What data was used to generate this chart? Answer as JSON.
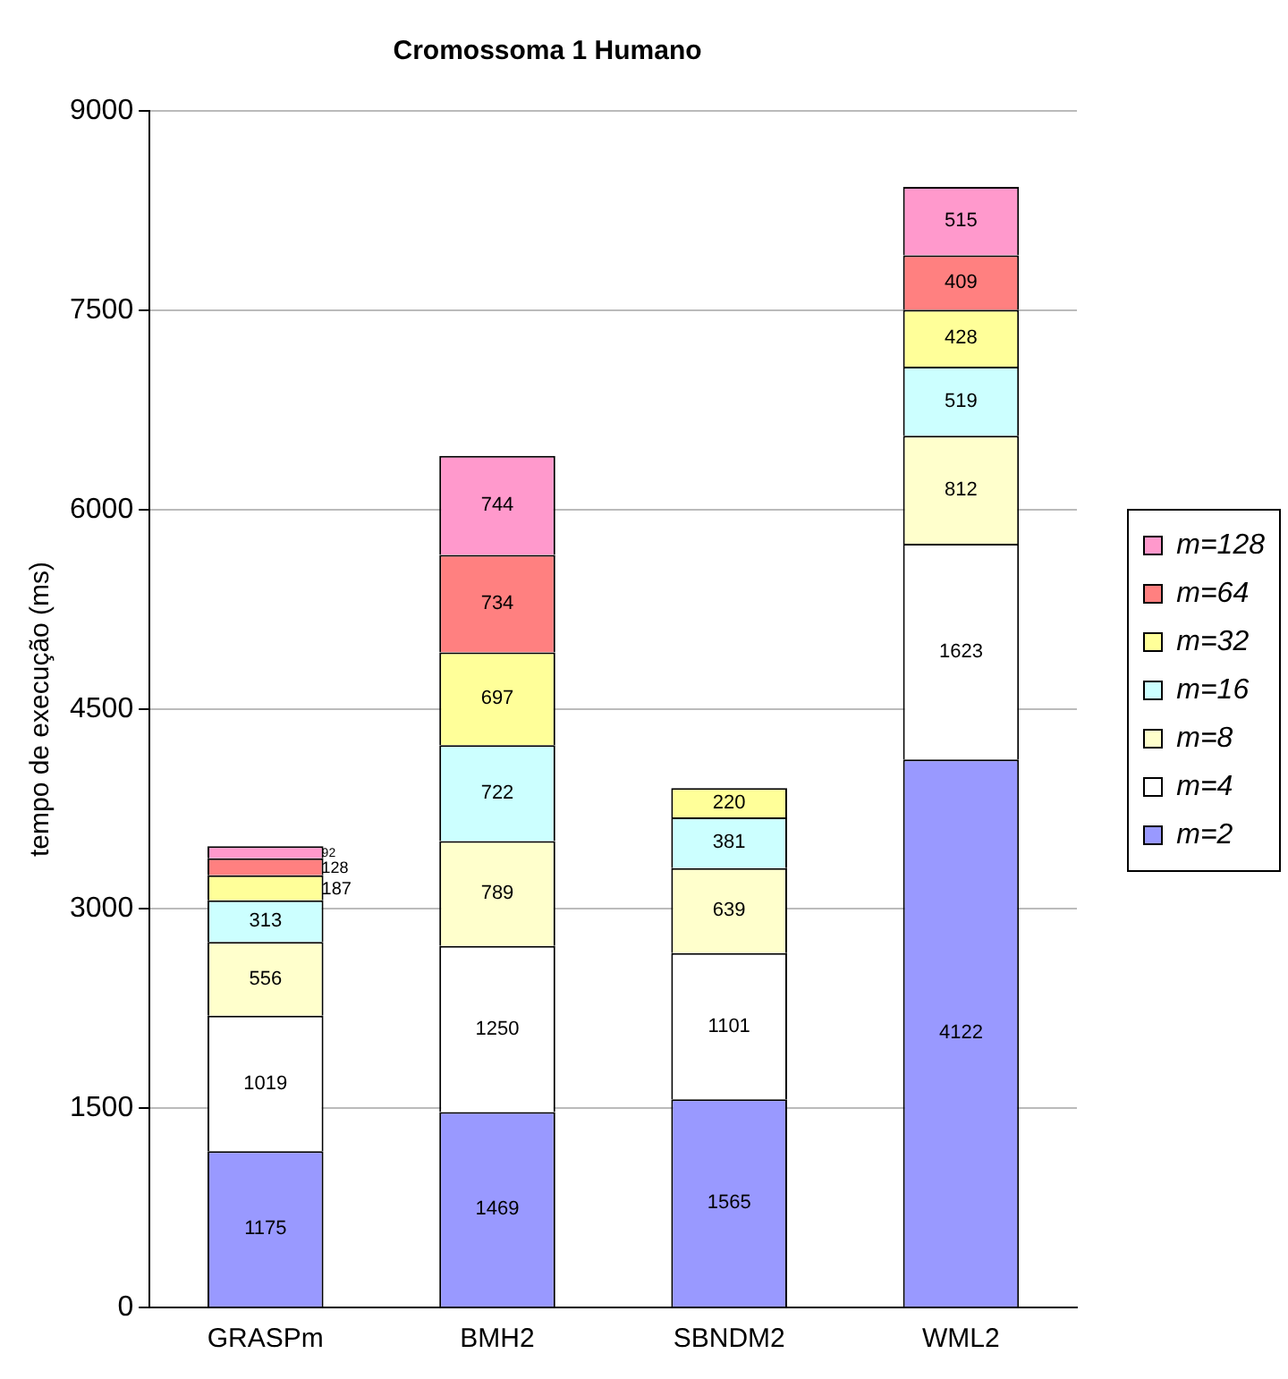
{
  "chart_data": {
    "type": "bar",
    "title": "Cromossoma 1 Humano",
    "ylabel": "tempo de execução (ms)",
    "categories": [
      "GRASPm",
      "BMH2",
      "SBNDM2",
      "WML2"
    ],
    "stacked": true,
    "data_labels": true,
    "grid": "y",
    "legend": "right",
    "ylim": [
      0,
      9000
    ],
    "yticks": [
      0,
      1500,
      3000,
      4500,
      6000,
      7500,
      9000
    ],
    "series": [
      {
        "name": "m=2",
        "color": "#9999ff",
        "values": [
          1175,
          1469,
          1565,
          4122
        ]
      },
      {
        "name": "m=4",
        "color": "#ffffff",
        "values": [
          1019,
          1250,
          1101,
          1623
        ]
      },
      {
        "name": "m=8",
        "color": "#ffffcc",
        "values": [
          556,
          789,
          639,
          812
        ]
      },
      {
        "name": "m=16",
        "color": "#ccffff",
        "values": [
          313,
          722,
          381,
          519
        ]
      },
      {
        "name": "m=32",
        "color": "#ffff99",
        "values": [
          187,
          697,
          220,
          428
        ]
      },
      {
        "name": "m=64",
        "color": "#ff8080",
        "values": [
          128,
          734,
          null,
          409
        ]
      },
      {
        "name": "m=128",
        "color": "#ff99cc",
        "values": [
          92,
          744,
          null,
          515
        ]
      }
    ]
  }
}
